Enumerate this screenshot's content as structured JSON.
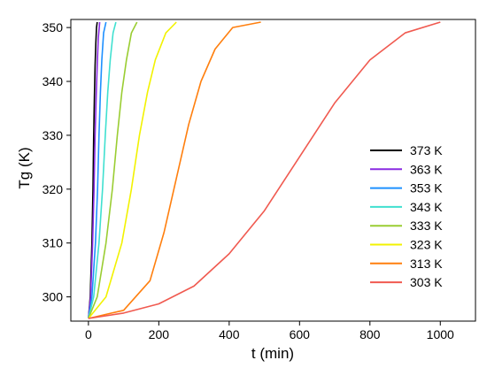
{
  "chart_data": {
    "type": "line",
    "xlabel": "t (min)",
    "ylabel": "Tg (K)",
    "xlim": [
      -50,
      1100
    ],
    "ylim": [
      295.5,
      351.5
    ],
    "xticks": [
      0,
      200,
      400,
      600,
      800,
      1000
    ],
    "yticks": [
      300,
      310,
      320,
      330,
      340,
      350
    ],
    "grid": false,
    "legend_position": "right",
    "series": [
      {
        "name": "373 K",
        "color": "#000000",
        "x": [
          0,
          5,
          10,
          13,
          15,
          17,
          19,
          21,
          23,
          25
        ],
        "y": [
          296,
          300,
          310,
          320,
          330,
          337,
          343,
          347,
          350,
          351
        ]
      },
      {
        "name": "363 K",
        "color": "#8a2be2",
        "x": [
          0,
          6,
          12,
          16,
          19,
          22,
          25,
          28,
          32
        ],
        "y": [
          296,
          300,
          310,
          320,
          330,
          337,
          343,
          348,
          351
        ]
      },
      {
        "name": "353 K",
        "color": "#1e90ff",
        "x": [
          0,
          10,
          20,
          26,
          30,
          34,
          38,
          43,
          50
        ],
        "y": [
          296,
          300,
          310,
          320,
          330,
          338,
          344,
          349,
          351
        ]
      },
      {
        "name": "343 K",
        "color": "#40e0d0",
        "x": [
          0,
          15,
          30,
          40,
          48,
          55,
          62,
          70,
          78
        ],
        "y": [
          296,
          300,
          310,
          320,
          330,
          338,
          344,
          349,
          351
        ]
      },
      {
        "name": "333 K",
        "color": "#9acd32",
        "x": [
          0,
          25,
          50,
          68,
          82,
          95,
          108,
          122,
          138
        ],
        "y": [
          296,
          300,
          310,
          320,
          330,
          338,
          344,
          349,
          351
        ]
      },
      {
        "name": "323 K",
        "color": "#f2f200",
        "x": [
          0,
          50,
          95,
          122,
          145,
          168,
          190,
          220,
          250
        ],
        "y": [
          296,
          300,
          310,
          320,
          330,
          338,
          344,
          349,
          351
        ]
      },
      {
        "name": "313 K",
        "color": "#ff7f0e",
        "x": [
          0,
          100,
          175,
          215,
          250,
          285,
          320,
          360,
          410,
          490
        ],
        "y": [
          296,
          297.5,
          303,
          312,
          322,
          332,
          340,
          346,
          350,
          351
        ]
      },
      {
        "name": "303 K",
        "color": "#f05a50",
        "x": [
          0,
          100,
          200,
          300,
          400,
          500,
          600,
          700,
          800,
          900,
          1000
        ],
        "y": [
          296,
          297,
          298.7,
          302,
          308,
          316,
          326,
          336,
          344,
          349,
          351
        ]
      }
    ]
  }
}
